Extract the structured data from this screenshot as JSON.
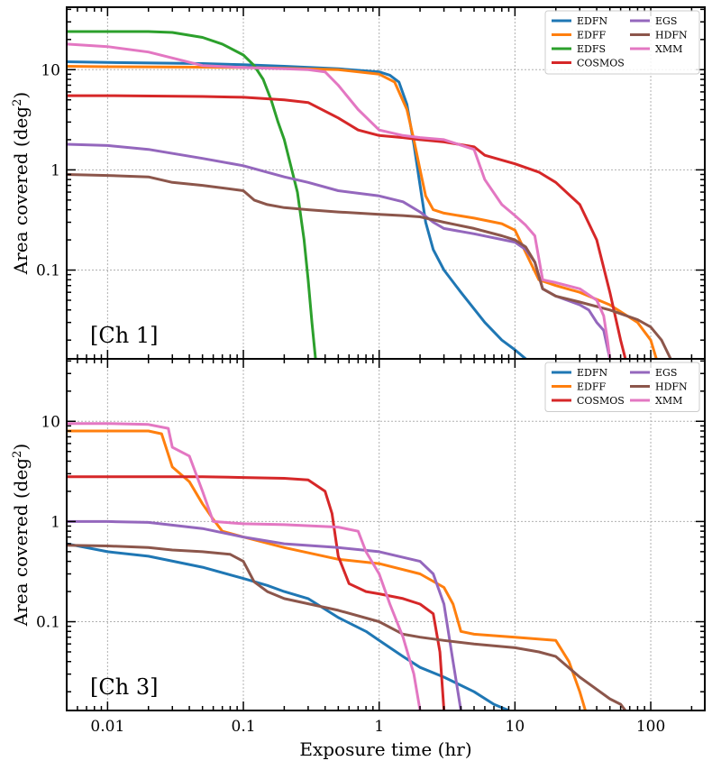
{
  "chart_data": [
    {
      "type": "line",
      "panel_label": "[Ch 1]",
      "xlabel": "Exposure time (hr)",
      "ylabel": "Area covered (deg",
      "ylabel_sup": "2",
      "ylabel_close": ")",
      "xscale": "log",
      "yscale": "log",
      "xlim": [
        0.005,
        250
      ],
      "ylim": [
        0.013,
        42
      ],
      "xticks": [
        {
          "v": 0.01,
          "label": "0.01"
        },
        {
          "v": 0.1,
          "label": "0.1"
        },
        {
          "v": 1,
          "label": "1"
        },
        {
          "v": 10,
          "label": "10"
        },
        {
          "v": 100,
          "label": "100"
        }
      ],
      "yticks": [
        {
          "v": 0.1,
          "label": "0.1"
        },
        {
          "v": 1,
          "label": "1"
        },
        {
          "v": 10,
          "label": "10"
        }
      ],
      "show_xticklabels": false,
      "grid": true,
      "legend_position": "top-right",
      "legend_columns": 2,
      "series": [
        {
          "name": "EDFN",
          "color": "#1f77b4",
          "x": [
            0.005,
            0.01,
            0.05,
            0.1,
            0.2,
            0.5,
            1,
            1.2,
            1.4,
            1.6,
            1.8,
            2,
            2.2,
            2.5,
            3,
            4,
            6,
            8,
            10,
            12
          ],
          "y": [
            12,
            11.8,
            11.5,
            11.2,
            10.8,
            10.2,
            9.5,
            8.8,
            7.5,
            4.5,
            1.8,
            0.7,
            0.3,
            0.16,
            0.1,
            0.06,
            0.03,
            0.02,
            0.016,
            0.013
          ]
        },
        {
          "name": "EDFF",
          "color": "#ff7f0e",
          "x": [
            0.005,
            0.01,
            0.05,
            0.1,
            0.2,
            0.5,
            1,
            1.3,
            1.6,
            1.8,
            2,
            2.2,
            2.5,
            3,
            5,
            8,
            10,
            15,
            20,
            30,
            50,
            80,
            100,
            110
          ],
          "y": [
            10.8,
            10.7,
            10.6,
            10.5,
            10.3,
            10,
            9,
            7.5,
            4,
            2,
            1,
            0.55,
            0.4,
            0.37,
            0.33,
            0.29,
            0.25,
            0.08,
            0.07,
            0.06,
            0.045,
            0.03,
            0.02,
            0.013
          ]
        },
        {
          "name": "EDFS",
          "color": "#2ca02c",
          "x": [
            0.005,
            0.02,
            0.03,
            0.05,
            0.07,
            0.1,
            0.12,
            0.14,
            0.16,
            0.18,
            0.2,
            0.22,
            0.25,
            0.28,
            0.3,
            0.32,
            0.34
          ],
          "y": [
            24,
            24,
            23.5,
            21,
            18,
            14,
            11,
            8,
            5,
            3,
            2,
            1.2,
            0.6,
            0.2,
            0.08,
            0.03,
            0.013
          ]
        },
        {
          "name": "COSMOS",
          "color": "#d62728",
          "x": [
            0.005,
            0.01,
            0.05,
            0.1,
            0.2,
            0.3,
            0.5,
            0.7,
            1,
            1.5,
            2,
            3,
            5,
            6,
            8,
            10,
            15,
            20,
            30,
            40,
            50,
            60,
            65
          ],
          "y": [
            5.5,
            5.5,
            5.4,
            5.3,
            5,
            4.7,
            3.3,
            2.5,
            2.2,
            2.1,
            2,
            1.9,
            1.7,
            1.4,
            1.25,
            1.15,
            0.95,
            0.75,
            0.45,
            0.2,
            0.06,
            0.02,
            0.013
          ]
        },
        {
          "name": "EGS",
          "color": "#9467bd",
          "x": [
            0.005,
            0.01,
            0.02,
            0.05,
            0.1,
            0.2,
            0.3,
            0.5,
            1,
            1.5,
            2,
            2.5,
            3,
            5,
            10,
            12,
            14,
            16,
            20,
            30,
            35,
            40,
            45,
            50
          ],
          "y": [
            1.8,
            1.75,
            1.6,
            1.3,
            1.1,
            0.85,
            0.75,
            0.62,
            0.55,
            0.48,
            0.38,
            0.3,
            0.26,
            0.23,
            0.19,
            0.16,
            0.12,
            0.065,
            0.055,
            0.045,
            0.04,
            0.03,
            0.025,
            0.013
          ]
        },
        {
          "name": "HDFN",
          "color": "#8c564b",
          "x": [
            0.005,
            0.01,
            0.02,
            0.03,
            0.05,
            0.1,
            0.12,
            0.15,
            0.2,
            0.3,
            0.5,
            1,
            1.5,
            2,
            3,
            5,
            8,
            10,
            12,
            14,
            16,
            20,
            30,
            50,
            80,
            100,
            120,
            140
          ],
          "y": [
            0.9,
            0.88,
            0.85,
            0.75,
            0.7,
            0.62,
            0.5,
            0.45,
            0.42,
            0.4,
            0.38,
            0.36,
            0.35,
            0.34,
            0.3,
            0.26,
            0.22,
            0.2,
            0.17,
            0.12,
            0.065,
            0.055,
            0.048,
            0.04,
            0.032,
            0.027,
            0.02,
            0.013
          ]
        },
        {
          "name": "XMM",
          "color": "#e377c2",
          "x": [
            0.005,
            0.01,
            0.02,
            0.05,
            0.1,
            0.2,
            0.3,
            0.4,
            0.5,
            0.7,
            1,
            1.5,
            2,
            3,
            5,
            6,
            8,
            10,
            12,
            14,
            16,
            20,
            30,
            40,
            45,
            48,
            50
          ],
          "y": [
            18,
            17,
            15,
            11,
            10.5,
            10.2,
            10,
            9.5,
            7,
            4,
            2.5,
            2.2,
            2.1,
            2,
            1.6,
            0.8,
            0.45,
            0.35,
            0.28,
            0.22,
            0.08,
            0.075,
            0.065,
            0.05,
            0.035,
            0.02,
            0.013
          ]
        }
      ]
    },
    {
      "type": "line",
      "panel_label": "[Ch 3]",
      "xlabel": "Exposure time (hr)",
      "ylabel": "Area covered (deg",
      "ylabel_sup": "2",
      "ylabel_close": ")",
      "xscale": "log",
      "yscale": "log",
      "xlim": [
        0.005,
        250
      ],
      "ylim": [
        0.013,
        42
      ],
      "xticks": [
        {
          "v": 0.01,
          "label": "0.01"
        },
        {
          "v": 0.1,
          "label": "0.1"
        },
        {
          "v": 1,
          "label": "1"
        },
        {
          "v": 10,
          "label": "10"
        },
        {
          "v": 100,
          "label": "100"
        }
      ],
      "yticks": [
        {
          "v": 0.1,
          "label": "0.1"
        },
        {
          "v": 1,
          "label": "1"
        },
        {
          "v": 10,
          "label": "10"
        }
      ],
      "show_xticklabels": true,
      "grid": true,
      "legend_position": "top-right",
      "legend_columns": 2,
      "series": [
        {
          "name": "EDFN",
          "color": "#1f77b4",
          "x": [
            0.005,
            0.01,
            0.02,
            0.05,
            0.1,
            0.15,
            0.2,
            0.3,
            0.5,
            0.8,
            1,
            1.5,
            2,
            3,
            5,
            7,
            9
          ],
          "y": [
            0.6,
            0.5,
            0.45,
            0.35,
            0.27,
            0.23,
            0.2,
            0.17,
            0.11,
            0.08,
            0.065,
            0.045,
            0.035,
            0.028,
            0.02,
            0.015,
            0.013
          ]
        },
        {
          "name": "EDFF",
          "color": "#ff7f0e",
          "x": [
            0.005,
            0.01,
            0.02,
            0.025,
            0.03,
            0.04,
            0.05,
            0.06,
            0.07,
            0.1,
            0.2,
            0.5,
            1,
            2,
            3,
            3.5,
            4,
            5,
            10,
            20,
            25,
            30,
            33
          ],
          "y": [
            8,
            8,
            8,
            7.5,
            3.5,
            2.5,
            1.5,
            1.05,
            0.8,
            0.7,
            0.55,
            0.42,
            0.38,
            0.3,
            0.22,
            0.15,
            0.08,
            0.075,
            0.07,
            0.065,
            0.04,
            0.02,
            0.013
          ]
        },
        {
          "name": "COSMOS",
          "color": "#d62728",
          "x": [
            0.005,
            0.01,
            0.05,
            0.1,
            0.2,
            0.3,
            0.4,
            0.45,
            0.5,
            0.6,
            0.8,
            1,
            1.5,
            2,
            2.5,
            2.8,
            3
          ],
          "y": [
            2.8,
            2.8,
            2.8,
            2.75,
            2.7,
            2.6,
            2,
            1.2,
            0.45,
            0.24,
            0.2,
            0.19,
            0.17,
            0.15,
            0.12,
            0.05,
            0.013
          ]
        },
        {
          "name": "EGS",
          "color": "#9467bd",
          "x": [
            0.005,
            0.01,
            0.02,
            0.05,
            0.1,
            0.2,
            0.5,
            1,
            2,
            2.5,
            3,
            3.5,
            4
          ],
          "y": [
            1,
            1,
            0.98,
            0.85,
            0.7,
            0.6,
            0.55,
            0.5,
            0.4,
            0.3,
            0.15,
            0.04,
            0.013
          ]
        },
        {
          "name": "HDFN",
          "color": "#8c564b",
          "x": [
            0.005,
            0.01,
            0.02,
            0.03,
            0.05,
            0.08,
            0.1,
            0.12,
            0.15,
            0.2,
            0.5,
            1,
            1.5,
            2,
            3,
            5,
            10,
            15,
            20,
            30,
            50,
            60,
            65
          ],
          "y": [
            0.58,
            0.57,
            0.55,
            0.52,
            0.5,
            0.47,
            0.4,
            0.25,
            0.2,
            0.17,
            0.13,
            0.1,
            0.075,
            0.07,
            0.065,
            0.06,
            0.055,
            0.05,
            0.045,
            0.028,
            0.017,
            0.015,
            0.013
          ]
        },
        {
          "name": "XMM",
          "color": "#e377c2",
          "x": [
            0.005,
            0.01,
            0.02,
            0.028,
            0.03,
            0.04,
            0.05,
            0.06,
            0.1,
            0.2,
            0.5,
            0.7,
            0.8,
            1,
            1.2,
            1.5,
            1.8,
            2
          ],
          "y": [
            9.5,
            9.5,
            9.3,
            8.5,
            5.5,
            4.5,
            2,
            1,
            0.95,
            0.93,
            0.88,
            0.8,
            0.5,
            0.3,
            0.15,
            0.07,
            0.03,
            0.013
          ]
        }
      ]
    }
  ]
}
